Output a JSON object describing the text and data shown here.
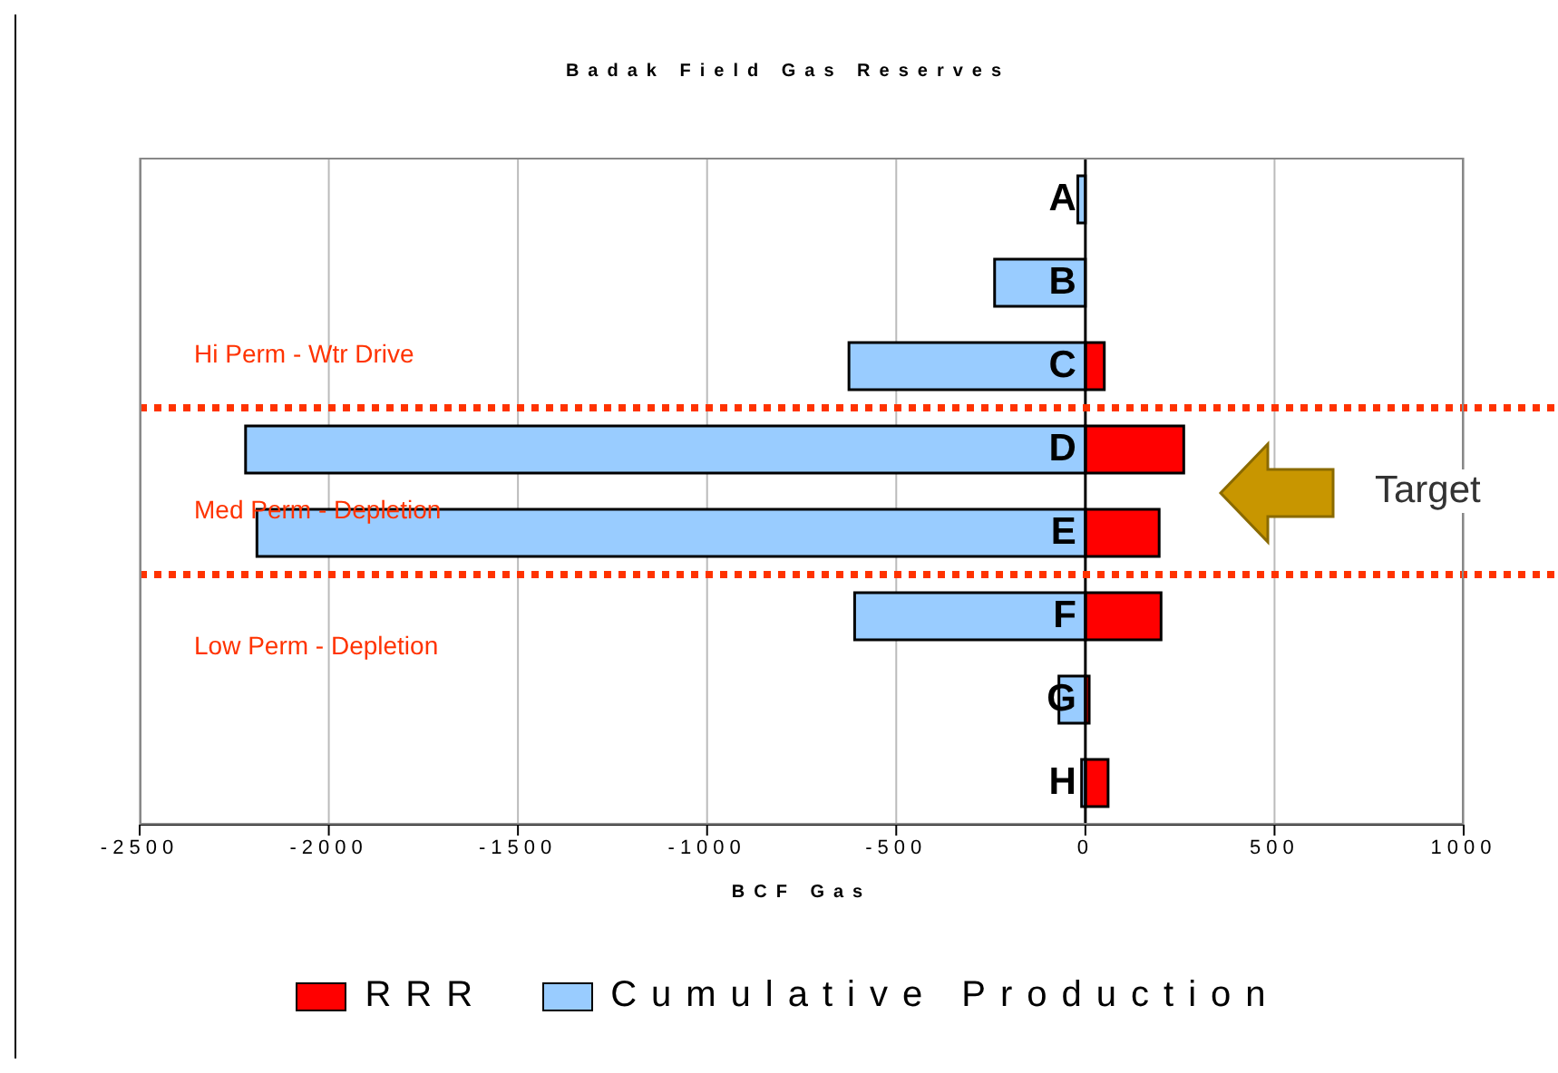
{
  "chart_data": {
    "type": "bar",
    "orientation": "horizontal",
    "stacked": true,
    "title": "Badak Field Gas Reserves",
    "xlabel": "BCF Gas",
    "categories": [
      "A",
      "B",
      "C",
      "D",
      "E",
      "F",
      "G",
      "H"
    ],
    "series": [
      {
        "name": "RRR",
        "color": "#ff0000",
        "values": [
          null,
          null,
          50,
          260,
          195,
          200,
          10,
          60
        ]
      },
      {
        "name": "Cumulative Production",
        "color": "#99ccff",
        "values": [
          -20,
          -240,
          -625,
          -2220,
          -2190,
          -610,
          -70,
          -10
        ]
      }
    ],
    "xlim": [
      -2500,
      1000
    ],
    "xticks": [
      -2500,
      -2000,
      -1500,
      -1000,
      -500,
      0,
      500,
      1000
    ],
    "grid": "x",
    "legend": "bottom",
    "annotations": [
      "Hi Perm - Wtr Drive",
      "Med Perm - Depletion",
      "Low Perm - Depletion",
      "Target"
    ]
  }
}
